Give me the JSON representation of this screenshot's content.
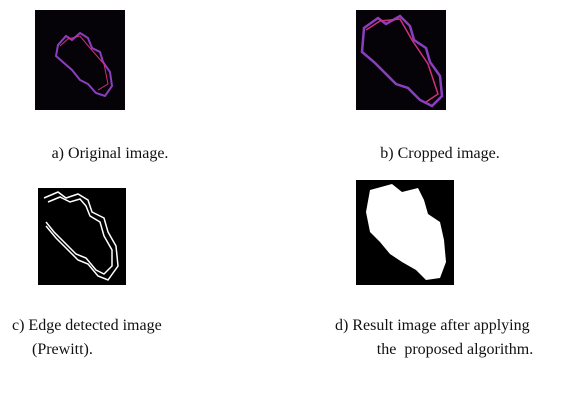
{
  "figure": {
    "panels": [
      {
        "caption_lines": [
          "a) Original image."
        ]
      },
      {
        "caption_lines": [
          "b) Cropped image."
        ]
      },
      {
        "caption_lines": [
          "c) Edge detected image",
          "(Prewitt)."
        ]
      },
      {
        "caption_lines": [
          "d) Result image after applying",
          "the  proposed algorithm."
        ]
      }
    ]
  }
}
